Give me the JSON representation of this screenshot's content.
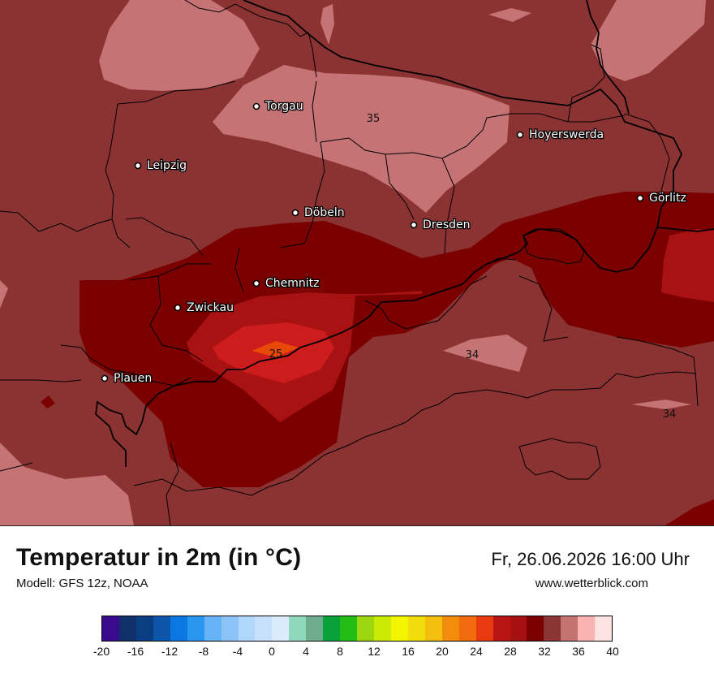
{
  "map": {
    "cities": [
      {
        "name": "Torgau"
      },
      {
        "name": "Hoyerswerda"
      },
      {
        "name": "Leipzig"
      },
      {
        "name": "Görlitz"
      },
      {
        "name": "Döbeln"
      },
      {
        "name": "Dresden"
      },
      {
        "name": "Chemnitz"
      },
      {
        "name": "Zwickau"
      },
      {
        "name": "Plauen"
      }
    ],
    "contour_labels": [
      "35",
      "34",
      "25",
      "34"
    ],
    "colors": {
      "t30_32": "#7b0000",
      "t32_34": "#8b3232",
      "t34_36": "#c57374",
      "t28_30": "#a81212",
      "t26_28": "#cc1c1c",
      "t24_26": "#e84808"
    }
  },
  "footer": {
    "title": "Temperatur in 2m (in °C)",
    "model": "Modell: GFS 12z, NOAA",
    "datetime": "Fr, 26.06.2026 16:00 Uhr",
    "website": "www.wetterblick.com"
  },
  "legend": {
    "colors": [
      "#3a0a8c",
      "#10306a",
      "#093f82",
      "#0c55a8",
      "#0a78e0",
      "#2a96f2",
      "#66b3f7",
      "#8cc4f8",
      "#b0d6fb",
      "#c6e0fb",
      "#dbeafc",
      "#8fd7bd",
      "#6eac8e",
      "#09a23a",
      "#22bd15",
      "#9cd60e",
      "#cdea06",
      "#f3f500",
      "#f1dd0c",
      "#f2bf0e",
      "#f38c0c",
      "#f06c0e",
      "#e8390f",
      "#b81414",
      "#a51010",
      "#7a0000",
      "#8a3434",
      "#c47373",
      "#f9b4b2",
      "#fde2e2"
    ],
    "ticks": [
      "-20",
      "-16",
      "-12",
      "-8",
      "-4",
      "0",
      "4",
      "8",
      "12",
      "16",
      "20",
      "24",
      "28",
      "32",
      "36",
      "40"
    ],
    "min": -20,
    "max": 40,
    "step": 2
  }
}
